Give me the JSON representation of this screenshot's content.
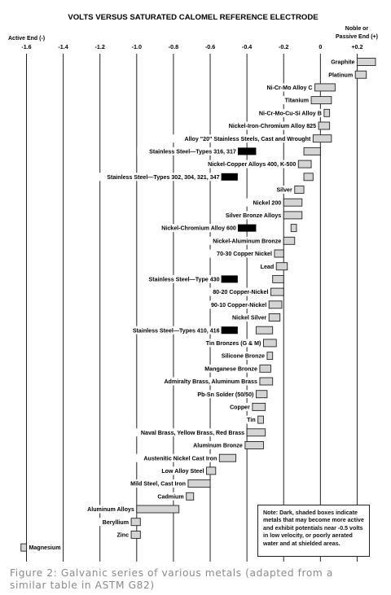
{
  "chart_data": {
    "type": "bar",
    "title": "VOLTS VERSUS SATURATED CALOMEL REFERENCE ELECTRODE",
    "xlabel_left": "Active End (-)",
    "xlabel_right": "Noble or Passive End (+)",
    "xlim": [
      -1.7,
      0.3
    ],
    "ticks": [
      -1.6,
      -1.4,
      -1.2,
      -1.0,
      -0.8,
      -0.6,
      -0.4,
      -0.2,
      0,
      0.2
    ],
    "tick_labels": [
      "-1.6",
      "-1.4",
      "-1.2",
      "-1.0",
      "-0.8",
      "-0.6",
      "-0.4",
      "-0.2",
      "0",
      "+0.2"
    ],
    "grid": true,
    "series": [
      {
        "label": "Graphite",
        "low": 0.2,
        "high": 0.3,
        "dark": false
      },
      {
        "label": "Platinum",
        "low": 0.19,
        "high": 0.25,
        "dark": false
      },
      {
        "label": "Ni-Cr-Mo Alloy C",
        "low": -0.03,
        "high": 0.08,
        "dark": false
      },
      {
        "label": "Titanium",
        "low": -0.05,
        "high": 0.06,
        "dark": false
      },
      {
        "label": "Ni-Cr-Mo-Cu-Si Alloy B",
        "low": 0.02,
        "high": 0.05,
        "dark": false
      },
      {
        "label": "Nickel-Iron-Chromium Alloy 825",
        "low": -0.01,
        "high": 0.05,
        "dark": false
      },
      {
        "label": "Alloy \"20\" Stainless Steels, Cast and Wrought",
        "low": -0.04,
        "high": 0.06,
        "dark": false
      },
      {
        "label": "Stainless Steel—Types 316, 317",
        "low": -0.09,
        "high": 0.0,
        "dark": false,
        "dark_low": -0.45,
        "dark_high": -0.35
      },
      {
        "label": "Nickel-Copper Alloys 400, K-500",
        "low": -0.12,
        "high": -0.05,
        "dark": false
      },
      {
        "label": "Stainless Steel—Types 302, 304, 321, 347",
        "low": -0.09,
        "high": -0.04,
        "dark": false,
        "dark_low": -0.54,
        "dark_high": -0.45
      },
      {
        "label": "Silver",
        "low": -0.14,
        "high": -0.09,
        "dark": false
      },
      {
        "label": "Nickel 200",
        "low": -0.2,
        "high": -0.1,
        "dark": false
      },
      {
        "label": "Silver Bronze Alloys",
        "low": -0.2,
        "high": -0.1,
        "dark": false
      },
      {
        "label": "Nickel-Chromium Alloy 600",
        "low": -0.16,
        "high": -0.13,
        "dark": false,
        "dark_low": -0.45,
        "dark_high": -0.35
      },
      {
        "label": "Nickel-Aluminum Bronze",
        "low": -0.2,
        "high": -0.14,
        "dark": false
      },
      {
        "label": "70-30 Copper Nickel",
        "low": -0.25,
        "high": -0.2,
        "dark": false
      },
      {
        "label": "Lead",
        "low": -0.24,
        "high": -0.18,
        "dark": false
      },
      {
        "label": "Stainless Steel—Type 430",
        "low": -0.26,
        "high": -0.2,
        "dark": false,
        "dark_low": -0.54,
        "dark_high": -0.45
      },
      {
        "label": "80-20 Copper-Nickel",
        "low": -0.27,
        "high": -0.2,
        "dark": false
      },
      {
        "label": "90-10 Copper-Nickel",
        "low": -0.28,
        "high": -0.21,
        "dark": false
      },
      {
        "label": "Nickel Silver",
        "low": -0.28,
        "high": -0.22,
        "dark": false
      },
      {
        "label": "Stainless Steel—Types 410, 416",
        "low": -0.35,
        "high": -0.26,
        "dark": false,
        "dark_low": -0.54,
        "dark_high": -0.45
      },
      {
        "label": "Tin Bronzes (G & M)",
        "low": -0.31,
        "high": -0.24,
        "dark": false
      },
      {
        "label": "Silicone Bronze",
        "low": -0.29,
        "high": -0.26,
        "dark": false
      },
      {
        "label": "Manganese Bronze",
        "low": -0.33,
        "high": -0.27,
        "dark": false
      },
      {
        "label": "Admiralty Brass, Aluminum Brass",
        "low": -0.33,
        "high": -0.26,
        "dark": false
      },
      {
        "label": "Pb-Sn Solder (50/50)",
        "low": -0.35,
        "high": -0.29,
        "dark": false
      },
      {
        "label": "Copper",
        "low": -0.37,
        "high": -0.3,
        "dark": false
      },
      {
        "label": "Tin",
        "low": -0.34,
        "high": -0.31,
        "dark": false
      },
      {
        "label": "Naval Brass, Yellow Brass, Red Brass",
        "low": -0.4,
        "high": -0.3,
        "dark": false
      },
      {
        "label": "Aluminum Bronze",
        "low": -0.41,
        "high": -0.31,
        "dark": false
      },
      {
        "label": "Austenitic Nickel Cast Iron",
        "low": -0.55,
        "high": -0.46,
        "dark": false
      },
      {
        "label": "Low Alloy Steel",
        "low": -0.62,
        "high": -0.57,
        "dark": false
      },
      {
        "label": "Mild Steel, Cast Iron",
        "low": -0.72,
        "high": -0.6,
        "dark": false
      },
      {
        "label": "Cadmium",
        "low": -0.73,
        "high": -0.69,
        "dark": false
      },
      {
        "label": "Aluminum Alloys",
        "low": -1.0,
        "high": -0.77,
        "dark": false
      },
      {
        "label": "Beryllium",
        "low": -1.03,
        "high": -0.98,
        "dark": false
      },
      {
        "label": "Zinc",
        "low": -1.03,
        "high": -0.98,
        "dark": false
      },
      {
        "label": "Magnesium",
        "low": -1.63,
        "high": -1.6,
        "dark": false
      }
    ],
    "note": "Note: Dark, shaded boxes indicate metals that may become more active and exhibit potentials near -0.5 volts in low velocity, or poorly aerated water and at shielded areas.",
    "colors": {
      "light_box": "#d4d4d4",
      "dark_box": "#000000",
      "grid": "#222222"
    }
  },
  "caption": "Figure 2: Galvanic series of various metals (adapted from a similar table in ASTM G82)"
}
